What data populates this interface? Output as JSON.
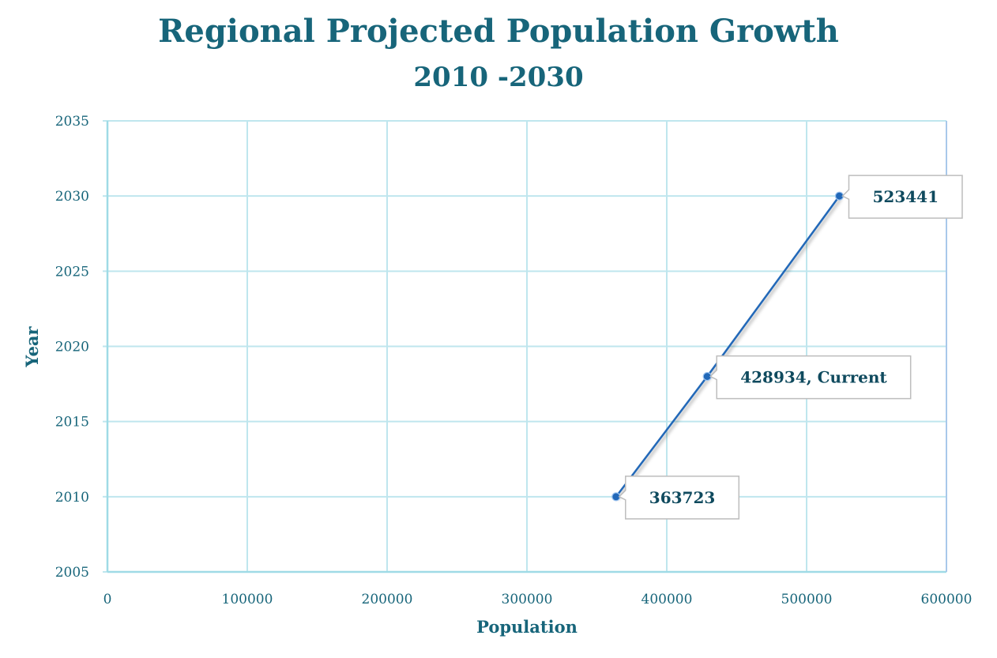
{
  "chart_data": {
    "type": "scatter",
    "title": "Regional Projected Population Growth",
    "subtitle": "2010 -2030",
    "xlabel": "Population",
    "ylabel": "Year",
    "xlim": [
      0,
      600000
    ],
    "ylim": [
      2005,
      2035
    ],
    "xticks": [
      0,
      100000,
      200000,
      300000,
      400000,
      500000,
      600000
    ],
    "yticks": [
      2005,
      2010,
      2015,
      2020,
      2025,
      2030,
      2035
    ],
    "grid": true,
    "series": [
      {
        "x": [
          363723,
          428934,
          523441
        ],
        "y": [
          2010,
          2018,
          2030
        ],
        "labels": [
          "363723",
          "428934, Current",
          "523441"
        ]
      }
    ],
    "colors": {
      "line": "#2168b8",
      "grid": "#bfe6ee",
      "text": "#17657a"
    }
  }
}
